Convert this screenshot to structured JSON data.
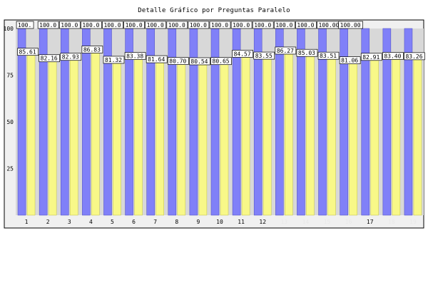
{
  "chart_data": {
    "type": "bar",
    "title": "Detalle Gráfico por Preguntas Paralelo",
    "categories": [
      "1",
      "2",
      "3",
      "4",
      "5",
      "6",
      "7",
      "8",
      "9",
      "10",
      "11",
      "12",
      "13",
      "14",
      "15",
      "16",
      "17",
      "18",
      "19"
    ],
    "series": [
      {
        "values": [
          100,
          100,
          100,
          100,
          100,
          100,
          100,
          100,
          100,
          100,
          100,
          100,
          100,
          100,
          100,
          100,
          100,
          100,
          100
        ]
      },
      {
        "values": [
          85.61,
          82.16,
          82.93,
          86.83,
          81.32,
          83.38,
          81.64,
          80.7,
          80.54,
          80.65,
          84.57,
          83.55,
          86.27,
          85.03,
          83.51,
          81.06,
          82.91,
          83.4,
          83.26
        ]
      }
    ],
    "data_labels": [
      {
        "top": [
          "100.",
          "100.0",
          "100.0",
          "100.0",
          "100.0",
          "100.0",
          "100.0",
          "100.0",
          "100.0",
          "100.0",
          "100.0",
          "100.0",
          "100.0",
          "100.0",
          "100.00",
          "100.00",
          "",
          "",
          ""
        ],
        "bottom": [
          "85.61",
          "82.16",
          "82.93",
          "86.83",
          "81.32",
          "83.38",
          "81.64",
          "80.70",
          "80.54",
          "80.65",
          "84.57",
          "83.55",
          "86.27",
          "85.03",
          "83.51",
          "81.06",
          "82.91",
          "83.40",
          "83.26"
        ]
      }
    ],
    "yticks": [
      "100",
      "75",
      "50",
      "25"
    ],
    "ylim": [
      0,
      100
    ],
    "colors": {
      "plot_bg": "#d8d8d8",
      "frame_bg": "#f0f0f0",
      "series1": "#8080f8",
      "series1_edge": "#5858c8",
      "series2": "#f8f888",
      "series2_edge": "#c8c858",
      "xtick_normal": "#000000",
      "xtick_faded": "#e8e8e8"
    },
    "xtick_faded_from_index": 12,
    "xtick_faded": [
      12,
      13,
      14,
      15,
      17,
      18
    ],
    "grid": false
  }
}
